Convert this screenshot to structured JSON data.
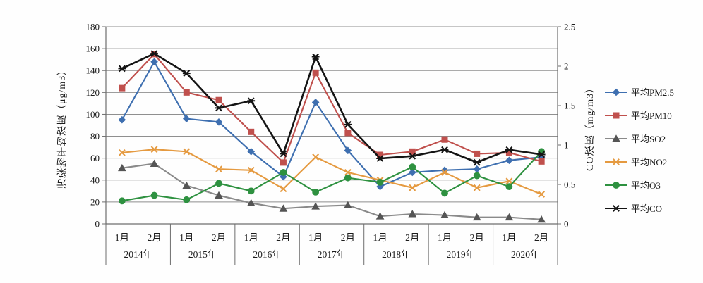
{
  "figure": {
    "background": "#fefefe",
    "text_color": "#1c1c1c",
    "grid_color": "#8f8f8f",
    "axis_color": "#6e6e6e"
  },
  "chart_data": {
    "type": "line",
    "title": "",
    "left_axis": {
      "title": "污染物平均浓度（μg/m3）",
      "min": 0,
      "max": 180,
      "step": 20,
      "tick_labels": [
        "0",
        "20",
        "40",
        "60",
        "80",
        "100",
        "120",
        "140",
        "160",
        "180"
      ]
    },
    "right_axis": {
      "title": "CO浓度（mg/m3）",
      "min": 0,
      "max": 2.5,
      "step": 0.5,
      "tick_labels": [
        "0",
        "0.5",
        "1",
        "1.5",
        "2",
        "2.5"
      ]
    },
    "grid": true,
    "legend_position": "right",
    "x": {
      "years": [
        "2014年",
        "2015年",
        "2016年",
        "2017年",
        "2018年",
        "2019年",
        "2020年"
      ],
      "months_per_year": [
        "1月",
        "2月"
      ]
    },
    "series": [
      {
        "name": "平均PM2.5",
        "axis": "left",
        "color": "#3e6fb0",
        "marker": "diamond",
        "values": [
          95,
          148,
          96,
          93,
          66,
          43,
          111,
          67,
          34,
          47,
          49,
          50,
          58,
          61
        ]
      },
      {
        "name": "平均PM10",
        "axis": "left",
        "color": "#c0504d",
        "marker": "square",
        "values": [
          124,
          155,
          120,
          113,
          84,
          56,
          138,
          83,
          63,
          66,
          77,
          64,
          65,
          57
        ]
      },
      {
        "name": "平均SO2",
        "axis": "left",
        "color": "#8a8a8a",
        "marker": "triangle",
        "marker_color": "#555555",
        "values": [
          51,
          55,
          35,
          26,
          19,
          14,
          16,
          17,
          7,
          9,
          8,
          6,
          6,
          4
        ]
      },
      {
        "name": "平均NO2",
        "axis": "left",
        "color": "#e59a40",
        "marker": "x",
        "values": [
          65,
          68,
          66,
          50,
          49,
          32,
          61,
          47,
          40,
          33,
          47,
          33,
          39,
          27
        ]
      },
      {
        "name": "平均O3",
        "axis": "left",
        "color": "#2e9140",
        "marker": "circle",
        "values": [
          21,
          26,
          22,
          37,
          30,
          47,
          29,
          42,
          38,
          52,
          28,
          44,
          34,
          66
        ]
      },
      {
        "name": "平均CO",
        "axis": "right",
        "color": "#141414",
        "marker": "asterisk",
        "values": [
          1.97,
          2.16,
          1.91,
          1.47,
          1.56,
          0.89,
          2.12,
          1.26,
          0.83,
          0.86,
          0.94,
          0.78,
          0.94,
          0.88
        ]
      }
    ]
  }
}
